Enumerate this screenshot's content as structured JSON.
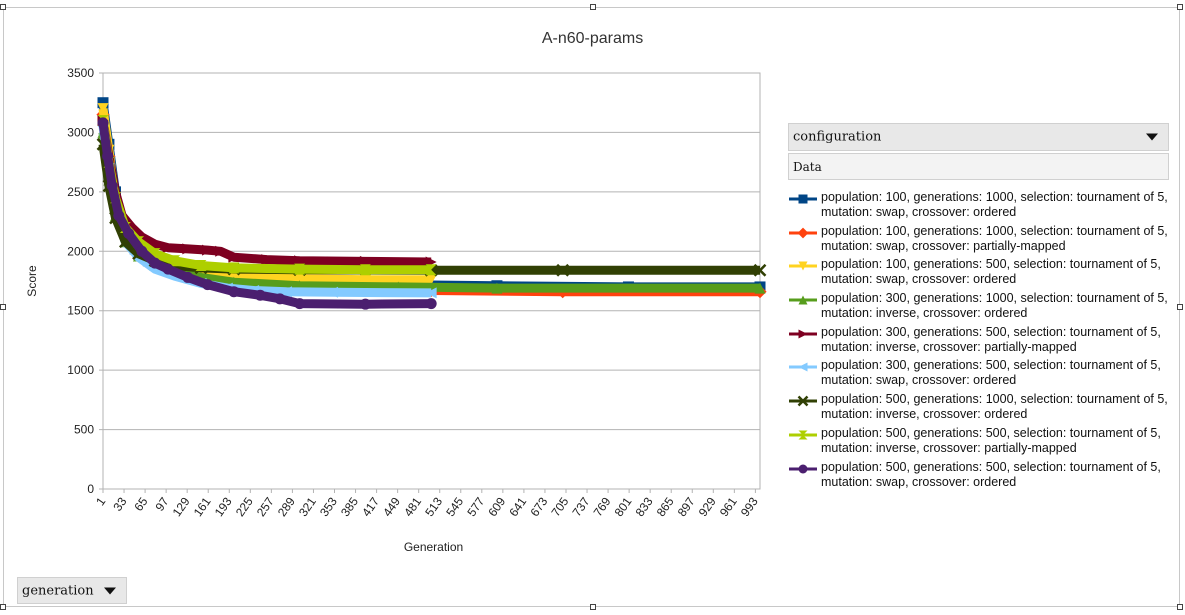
{
  "chart_data": {
    "type": "line",
    "title": "A-n60-params",
    "xlabel": "Generation",
    "ylabel": "Score",
    "ylim": [
      0,
      3500
    ],
    "yticks": [
      0,
      500,
      1000,
      1500,
      2000,
      2500,
      3000,
      3500
    ],
    "xlim": [
      1,
      1000
    ],
    "xticks": [
      1,
      33,
      65,
      97,
      129,
      161,
      193,
      225,
      257,
      289,
      321,
      353,
      385,
      417,
      449,
      481,
      513,
      545,
      577,
      609,
      641,
      673,
      705,
      737,
      769,
      801,
      833,
      865,
      897,
      929,
      961,
      993
    ],
    "grid": "horizontal",
    "legend_position": "right",
    "series": [
      {
        "name": "population: 100, generations: 1000, selection: tournament of 5, mutation: swap, crossover: ordered",
        "color": "#004586",
        "marker": "square",
        "points": [
          [
            1,
            3250
          ],
          [
            10,
            2900
          ],
          [
            20,
            2500
          ],
          [
            35,
            2150
          ],
          [
            50,
            2020
          ],
          [
            70,
            1920
          ],
          [
            100,
            1860
          ],
          [
            140,
            1800
          ],
          [
            200,
            1760
          ],
          [
            300,
            1730
          ],
          [
            450,
            1720
          ],
          [
            600,
            1710
          ],
          [
            800,
            1700
          ],
          [
            1000,
            1700
          ]
        ]
      },
      {
        "name": "population: 100, generations: 1000, selection: tournament of 5, mutation: swap, crossover: partially-mapped",
        "color": "#ff420e",
        "marker": "diamond",
        "points": [
          [
            1,
            3150
          ],
          [
            10,
            2800
          ],
          [
            20,
            2400
          ],
          [
            35,
            2120
          ],
          [
            50,
            2000
          ],
          [
            70,
            1900
          ],
          [
            100,
            1840
          ],
          [
            140,
            1790
          ],
          [
            200,
            1760
          ],
          [
            300,
            1720
          ],
          [
            400,
            1690
          ],
          [
            500,
            1670
          ],
          [
            700,
            1660
          ],
          [
            1000,
            1660
          ]
        ]
      },
      {
        "name": "population: 100, generations: 500, selection: tournament of 5, mutation: swap, crossover: ordered",
        "color": "#ffd320",
        "marker": "triangle-down",
        "points": [
          [
            1,
            3200
          ],
          [
            10,
            2850
          ],
          [
            20,
            2450
          ],
          [
            35,
            2150
          ],
          [
            55,
            2020
          ],
          [
            80,
            1930
          ],
          [
            110,
            1870
          ],
          [
            150,
            1820
          ],
          [
            200,
            1790
          ],
          [
            300,
            1770
          ],
          [
            400,
            1760
          ],
          [
            500,
            1760
          ]
        ]
      },
      {
        "name": "population: 300, generations: 1000, selection: tournament of 5, mutation: inverse, crossover: ordered",
        "color": "#579d1c",
        "marker": "triangle-up",
        "points": [
          [
            1,
            3000
          ],
          [
            10,
            2600
          ],
          [
            20,
            2300
          ],
          [
            35,
            2080
          ],
          [
            55,
            1960
          ],
          [
            80,
            1880
          ],
          [
            110,
            1820
          ],
          [
            150,
            1780
          ],
          [
            200,
            1740
          ],
          [
            300,
            1710
          ],
          [
            450,
            1700
          ],
          [
            600,
            1690
          ],
          [
            1000,
            1690
          ]
        ]
      },
      {
        "name": "population: 300, generations: 500, selection: tournament of 5, mutation: inverse, crossover: partially-mapped",
        "color": "#7e0021",
        "marker": "triangle-right",
        "points": [
          [
            1,
            3100
          ],
          [
            10,
            2800
          ],
          [
            20,
            2500
          ],
          [
            30,
            2300
          ],
          [
            45,
            2200
          ],
          [
            60,
            2120
          ],
          [
            80,
            2060
          ],
          [
            100,
            2030
          ],
          [
            130,
            2020
          ],
          [
            160,
            2010
          ],
          [
            180,
            2000
          ],
          [
            200,
            1950
          ],
          [
            250,
            1930
          ],
          [
            300,
            1920
          ],
          [
            400,
            1915
          ],
          [
            500,
            1910
          ]
        ]
      },
      {
        "name": "population: 300, generations: 500, selection: tournament of 5, mutation: swap, crossover: ordered",
        "color": "#83caff",
        "marker": "triangle-left",
        "points": [
          [
            1,
            3050
          ],
          [
            10,
            2700
          ],
          [
            20,
            2350
          ],
          [
            35,
            2080
          ],
          [
            55,
            1950
          ],
          [
            80,
            1850
          ],
          [
            110,
            1790
          ],
          [
            150,
            1730
          ],
          [
            190,
            1690
          ],
          [
            230,
            1670
          ],
          [
            280,
            1660
          ],
          [
            350,
            1655
          ],
          [
            500,
            1650
          ]
        ]
      },
      {
        "name": "population: 500, generations: 1000, selection: tournament of 5, mutation: inverse, crossover: ordered",
        "color": "#314004",
        "marker": "x",
        "points": [
          [
            1,
            2900
          ],
          [
            10,
            2550
          ],
          [
            20,
            2280
          ],
          [
            35,
            2080
          ],
          [
            55,
            1980
          ],
          [
            80,
            1920
          ],
          [
            110,
            1880
          ],
          [
            150,
            1860
          ],
          [
            200,
            1850
          ],
          [
            300,
            1845
          ],
          [
            500,
            1840
          ],
          [
            700,
            1840
          ],
          [
            1000,
            1840
          ]
        ]
      },
      {
        "name": "population: 500, generations: 500, selection: tournament of 5, mutation: inverse, crossover: partially-mapped",
        "color": "#aecf00",
        "marker": "hourglass",
        "points": [
          [
            1,
            3100
          ],
          [
            10,
            2750
          ],
          [
            20,
            2450
          ],
          [
            35,
            2200
          ],
          [
            55,
            2080
          ],
          [
            80,
            1980
          ],
          [
            110,
            1920
          ],
          [
            150,
            1880
          ],
          [
            200,
            1860
          ],
          [
            300,
            1850
          ],
          [
            400,
            1845
          ],
          [
            500,
            1845
          ]
        ]
      },
      {
        "name": "population: 500, generations: 500, selection: tournament of 5, mutation: swap, crossover: ordered",
        "color": "#4b1f6f",
        "marker": "circle",
        "points": [
          [
            1,
            3080
          ],
          [
            8,
            2800
          ],
          [
            15,
            2550
          ],
          [
            25,
            2300
          ],
          [
            40,
            2150
          ],
          [
            60,
            2000
          ],
          [
            80,
            1900
          ],
          [
            100,
            1850
          ],
          [
            130,
            1780
          ],
          [
            160,
            1720
          ],
          [
            200,
            1660
          ],
          [
            240,
            1630
          ],
          [
            270,
            1600
          ],
          [
            300,
            1560
          ],
          [
            400,
            1555
          ],
          [
            500,
            1560
          ]
        ]
      }
    ]
  },
  "controls": {
    "series_field": "configuration",
    "data_field": "Data",
    "axis_field": "generation"
  }
}
